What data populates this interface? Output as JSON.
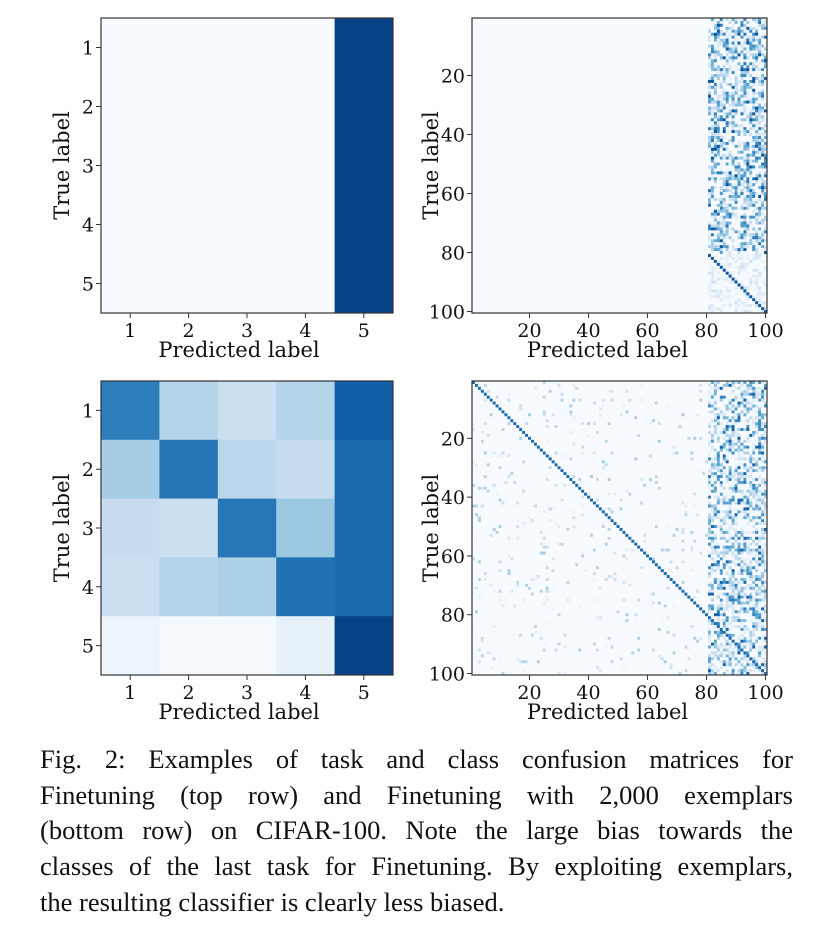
{
  "chart_data": [
    {
      "type": "heatmap",
      "panel": "top-left",
      "colormap": "Blues",
      "xlabel": "Predicted label",
      "ylabel": "True label",
      "xticks": [
        "1",
        "2",
        "3",
        "4",
        "5"
      ],
      "yticks": [
        "1",
        "2",
        "3",
        "4",
        "5"
      ],
      "matrix": [
        [
          0.0,
          0.0,
          0.0,
          0.0,
          0.93
        ],
        [
          0.0,
          0.0,
          0.0,
          0.0,
          0.93
        ],
        [
          0.0,
          0.0,
          0.0,
          0.0,
          0.93
        ],
        [
          0.0,
          0.0,
          0.0,
          0.0,
          0.93
        ],
        [
          0.0,
          0.0,
          0.0,
          0.0,
          0.93
        ]
      ]
    },
    {
      "type": "heatmap",
      "panel": "top-right",
      "colormap": "Blues",
      "xlabel": "Predicted label",
      "ylabel": "True label",
      "size": 100,
      "xticks": [
        "20",
        "40",
        "60",
        "80",
        "100"
      ],
      "yticks": [
        "20",
        "40",
        "60",
        "80",
        "100"
      ],
      "structure": {
        "biased_columns": [
          81,
          100
        ],
        "rows_1_80_in_biased_columns": "scattered confusion, mean 0.3",
        "rows_81_100_diagonal": 0.85,
        "columns_1_80": 0.0
      }
    },
    {
      "type": "heatmap",
      "panel": "bottom-left",
      "colormap": "Blues",
      "xlabel": "Predicted label",
      "ylabel": "True label",
      "xticks": [
        "1",
        "2",
        "3",
        "4",
        "5"
      ],
      "yticks": [
        "1",
        "2",
        "3",
        "4",
        "5"
      ],
      "matrix": [
        [
          0.7,
          0.3,
          0.22,
          0.3,
          0.82
        ],
        [
          0.35,
          0.74,
          0.28,
          0.24,
          0.78
        ],
        [
          0.24,
          0.22,
          0.73,
          0.38,
          0.78
        ],
        [
          0.22,
          0.31,
          0.33,
          0.75,
          0.78
        ],
        [
          0.05,
          0.01,
          0.01,
          0.08,
          0.93
        ]
      ]
    },
    {
      "type": "heatmap",
      "panel": "bottom-right",
      "colormap": "Blues",
      "xlabel": "Predicted label",
      "ylabel": "True label",
      "size": 100,
      "xticks": [
        "20",
        "40",
        "60",
        "80",
        "100"
      ],
      "yticks": [
        "20",
        "40",
        "60",
        "80",
        "100"
      ],
      "structure": {
        "diagonal": 0.78,
        "biased_columns": [
          81,
          100
        ],
        "biased_columns_confusion": "scattered, mean 0.25",
        "off_diagonal_columns_1_80": "sparse, mean 0.04"
      }
    }
  ],
  "caption": {
    "lines": [
      "Fig. 2: Examples of task and class confusion matrices for",
      "Finetuning (top row) and Finetuning with 2,000 exemplars",
      "(bottom row) on CIFAR-100. Note the large bias towards the",
      "classes of the last task for Finetuning. By exploiting exemplars,",
      "the resulting classifier is clearly less biased."
    ]
  }
}
